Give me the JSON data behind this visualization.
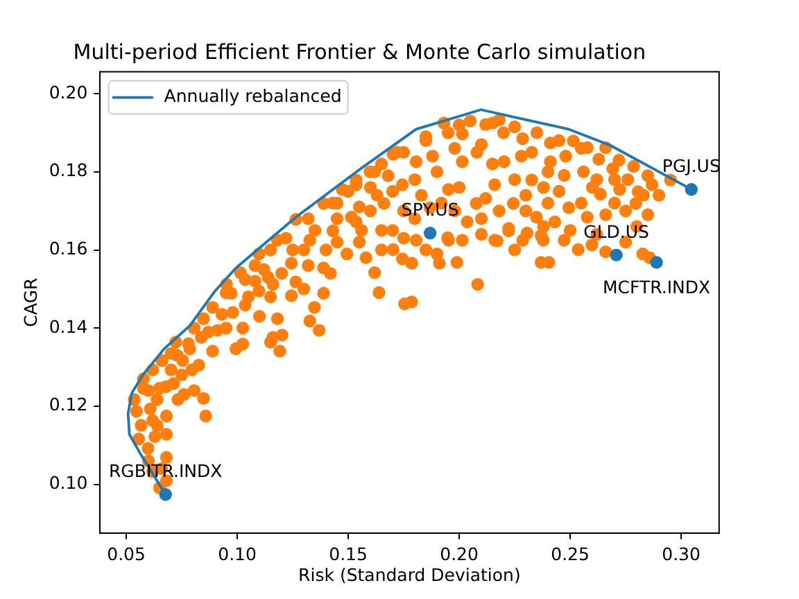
{
  "chart_data": {
    "type": "scatter",
    "title": "Multi-period Efficient Frontier & Monte Carlo simulation",
    "xlabel": "Risk (Standard Deviation)",
    "ylabel": "CAGR",
    "xlim": [
      0.0381,
      0.3171
    ],
    "ylim": [
      0.0875,
      0.2056
    ],
    "xticks": [
      0.05,
      {
        "value": 0.1,
        "label": "0.10"
      },
      0.15,
      {
        "value": 0.2,
        "label": "0.20"
      },
      0.25,
      {
        "value": 0.3,
        "label": "0.30"
      }
    ],
    "yticks": [
      {
        "value": 0.1,
        "label": "0.10"
      },
      0.12,
      0.14,
      0.16,
      0.18,
      {
        "value": 0.2,
        "label": "0.20"
      }
    ],
    "grid": false,
    "legend": "top left",
    "marker": "circle",
    "series": [
      {
        "name": "Annually rebalanced",
        "type": "line",
        "marker": "none",
        "line_style": "solid",
        "color": "#1f77b4",
        "x": [
          0.0677,
          0.0567,
          0.0514,
          0.0508,
          0.0525,
          0.0577,
          0.0671,
          0.0786,
          0.09,
          0.0994,
          0.1264,
          0.1556,
          0.1806,
          0.2098,
          0.2494,
          0.268,
          0.3046
        ],
        "values": [
          0.0974,
          0.1075,
          0.1128,
          0.1181,
          0.1234,
          0.1282,
          0.1347,
          0.1406,
          0.1495,
          0.1554,
          0.1684,
          0.1808,
          0.1909,
          0.1959,
          0.1909,
          0.1868,
          0.1755
        ]
      },
      {
        "type": "scatter",
        "color": "#ff7f0e",
        "x": [
          0.065,
          0.0681,
          0.0619,
          0.0681,
          0.0598,
          0.0556,
          0.0629,
          0.0681,
          0.0567,
          0.0619,
          0.0546,
          0.0608,
          0.0681,
          0.0536,
          0.0639,
          0.0577,
          0.0733,
          0.065,
          0.0858,
          0.0848,
          0.0806,
          0.0713,
          0.0577,
          0.0619,
          0.0702,
          0.0796,
          0.0661,
          0.0754,
          0.0827,
          0.0702,
          0.0786,
          0.0889,
          0.0723,
          0.0838,
          0.0994,
          0.1025,
          0.0806,
          0.0911,
          0.1025,
          0.0848,
          0.0931,
          0.1161,
          0.115,
          0.1192,
          0.1202,
          0.1327,
          0.1369,
          0.1348,
          0.1181,
          0.1036,
          0.0889,
          0.1098,
          0.0973,
          0.1244,
          0.1389,
          0.1161,
          0.1264,
          0.1036,
          0.1264,
          0.1389,
          0.1473,
          0.1536,
          0.1181,
          0.1098,
          0.1014,
          0.0952,
          0.1327,
          0.1431,
          0.1514,
          0.1244,
          0.1389,
          0.1139,
          0.1494,
          0.105,
          0.112,
          0.13,
          0.14,
          0.155,
          0.16,
          0.145,
          0.125,
          0.135,
          0.158,
          0.165,
          0.17,
          0.162,
          0.175,
          0.185,
          0.19,
          0.195,
          0.205,
          0.21,
          0.22,
          0.225,
          0.24,
          0.23,
          0.245,
          0.21,
          0.198,
          0.18,
          0.17,
          0.19,
          0.225,
          0.1931,
          0.2119,
          0.2181,
          0.2014,
          0.2286,
          0.2411,
          0.1702,
          0.1598,
          0.1806,
          0.2014,
          0.2202,
          0.2327,
          0.1536,
          0.1744,
          0.1952,
          0.216,
          0.2327,
          0.1661,
          0.1869,
          0.2077,
          0.2244,
          0.1536,
          0.2014,
          0.2119,
          0.266,
          0.2786,
          0.2952,
          0.2869,
          0.2806,
          0.2692,
          0.2629,
          0.2577,
          0.2514,
          0.2473,
          0.2411,
          0.2636,
          0.27,
          0.266,
          0.2577,
          0.2494,
          0.2431,
          0.2369,
          0.2473,
          0.2598,
          0.266,
          0.2536,
          0.2796,
          0.2723,
          0.2827,
          0.2858,
          0.1952,
          0.1806,
          0.1744,
          0.1619,
          0.1702,
          0.2223,
          0.216,
          0.2306,
          0.2036,
          0.2348,
          0.1639,
          0.1754,
          0.1786,
          0.2083,
          0.1911,
          0.199,
          0.2369,
          0.2404,
          0.2171,
          0.1948,
          0.1786,
          0.2379,
          0.2286,
          0.2223,
          0.29,
          0.276,
          0.095,
          0.108,
          0.115,
          0.122,
          0.132,
          0.143,
          0.15,
          0.165,
          0.172,
          0.185,
          0.2,
          0.215,
          0.225,
          0.235,
          0.245,
          0.255,
          0.272,
          0.285,
          0.16,
          0.168,
          0.18,
          0.188,
          0.198,
          0.208,
          0.215,
          0.228,
          0.238,
          0.248,
          0.256,
          0.262,
          0.27,
          0.283,
          0.145,
          0.155,
          0.163,
          0.175,
          0.183,
          0.192,
          0.2,
          0.218,
          0.23,
          0.24,
          0.255,
          0.26,
          0.275,
          0.285,
          0.13,
          0.145,
          0.156,
          0.165,
          0.175,
          0.185,
          0.21,
          0.238,
          0.25,
          0.262,
          0.275,
          0.28,
          0.108,
          0.115,
          0.12,
          0.132,
          0.142,
          0.098,
          0.11,
          0.087,
          0.095,
          0.078,
          0.075,
          0.068,
          0.06,
          0.064,
          0.06,
          0.066,
          0.073,
          0.076
        ],
        "values": [
          0.0991,
          0.1009,
          0.1033,
          0.1069,
          0.1092,
          0.1116,
          0.1122,
          0.1128,
          0.1151,
          0.1163,
          0.1187,
          0.1193,
          0.1175,
          0.1217,
          0.1217,
          0.1246,
          0.1217,
          0.1246,
          0.1175,
          0.122,
          0.124,
          0.1258,
          0.127,
          0.1293,
          0.1293,
          0.1293,
          0.1317,
          0.1317,
          0.1305,
          0.1335,
          0.1347,
          0.1341,
          0.1364,
          0.1376,
          0.1347,
          0.1359,
          0.14,
          0.1394,
          0.14,
          0.1424,
          0.1435,
          0.1376,
          0.1364,
          0.1341,
          0.1382,
          0.1418,
          0.1394,
          0.1453,
          0.1424,
          0.1459,
          0.1453,
          0.1495,
          0.1489,
          0.1483,
          0.1489,
          0.1512,
          0.1518,
          0.1524,
          0.1678,
          0.1719,
          0.1755,
          0.1779,
          0.1625,
          0.159,
          0.1542,
          0.1512,
          0.1625,
          0.1649,
          0.1684,
          0.1566,
          0.1554,
          0.153,
          0.159,
          0.148,
          0.155,
          0.15,
          0.16,
          0.162,
          0.17,
          0.172,
          0.16,
          0.165,
          0.158,
          0.165,
          0.175,
          0.18,
          0.185,
          0.188,
          0.18,
          0.19,
          0.193,
          0.187,
          0.19,
          0.178,
          0.18,
          0.17,
          0.175,
          0.168,
          0.17,
          0.168,
          0.165,
          0.159,
          0.16,
          0.1925,
          0.1921,
          0.1933,
          0.1897,
          0.1885,
          0.1874,
          0.1845,
          0.18,
          0.1826,
          0.1826,
          0.1826,
          0.185,
          0.1767,
          0.1767,
          0.1755,
          0.1767,
          0.1779,
          0.1719,
          0.1708,
          0.1719,
          0.1719,
          0.1672,
          0.1625,
          0.1732,
          0.1862,
          0.1814,
          0.1779,
          0.1767,
          0.1749,
          0.1808,
          0.1832,
          0.1862,
          0.1879,
          0.1791,
          0.1826,
          0.1743,
          0.172,
          0.169,
          0.1684,
          0.1708,
          0.1672,
          0.1637,
          0.1625,
          0.1613,
          0.1595,
          0.1601,
          0.1719,
          0.1755,
          0.159,
          0.158,
          0.1625,
          0.1625,
          0.1577,
          0.1542,
          0.1601,
          0.1649,
          0.1625,
          0.1643,
          0.1672,
          0.1684,
          0.1491,
          0.1462,
          0.1467,
          0.1512,
          0.1566,
          0.1568,
          0.1568,
          0.1568,
          0.1623,
          0.1631,
          0.1566,
          0.1625,
          0.1625,
          0.1655,
          0.174,
          0.178,
          0.149,
          0.156,
          0.16,
          0.163,
          0.168,
          0.172,
          0.175,
          0.182,
          0.185,
          0.189,
          0.192,
          0.1925,
          0.1915,
          0.19,
          0.188,
          0.186,
          0.183,
          0.179,
          0.176,
          0.179,
          0.178,
          0.184,
          0.186,
          0.185,
          0.182,
          0.184,
          0.176,
          0.184,
          0.18,
          0.178,
          0.178,
          0.174,
          0.168,
          0.171,
          0.174,
          0.17,
          0.174,
          0.172,
          0.176,
          0.17,
          0.174,
          0.172,
          0.172,
          0.176,
          0.17,
          0.169,
          0.16,
          0.162,
          0.165,
          0.16,
          0.163,
          0.16,
          0.164,
          0.166,
          0.165,
          0.164,
          0.162,
          0.166,
          0.152,
          0.148,
          0.154,
          0.156,
          0.154,
          0.144,
          0.143,
          0.139,
          0.14,
          0.136,
          0.128,
          0.125,
          0.124,
          0.115,
          0.106,
          0.104,
          0.133,
          0.123
        ]
      },
      {
        "type": "scatter",
        "color": "#1f77b4",
        "x": [
          0.3046,
          0.1869,
          0.2708,
          0.2889,
          0.0677
        ],
        "values": [
          0.1755,
          0.1643,
          0.1587,
          0.1568,
          0.0974
        ]
      }
    ],
    "annotations": [
      {
        "text": "PGJ.US",
        "x": 0.3046,
        "y": 0.1755
      },
      {
        "text": "SPY.US",
        "x": 0.1869,
        "y": 0.1643
      },
      {
        "text": "GLD.US",
        "x": 0.2708,
        "y": 0.1587
      },
      {
        "text": "MCFTR.INDX",
        "x": 0.2889,
        "y": 0.1568
      },
      {
        "text": "RGBITR.INDX",
        "x": 0.0677,
        "y": 0.0974
      }
    ]
  }
}
